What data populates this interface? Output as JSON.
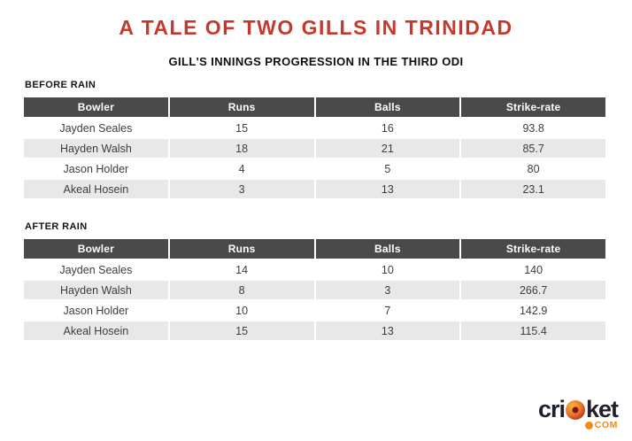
{
  "title": "A TALE OF TWO GILLS IN TRINIDAD",
  "subtitle": "GILL'S INNINGS PROGRESSION IN THE THIRD ODI",
  "colors": {
    "title_red": "#c5392c",
    "table_header_bg": "#4a4a4a",
    "table_header_text": "#ffffff",
    "row_alt_bg": "#e8e8e8",
    "cell_text": "#3d3d3d",
    "logo_text": "#231e2b",
    "logo_orange": "#f08921"
  },
  "chart_data": [
    {
      "type": "table",
      "title": "BEFORE RAIN",
      "columns": [
        "Bowler",
        "Runs",
        "Balls",
        "Strike-rate"
      ],
      "rows": [
        [
          "Jayden Seales",
          15,
          16,
          93.8
        ],
        [
          "Hayden Walsh",
          18,
          21,
          85.7
        ],
        [
          "Jason Holder",
          4,
          5,
          80
        ],
        [
          "Akeal Hosein",
          3,
          13,
          23.1
        ]
      ]
    },
    {
      "type": "table",
      "title": "AFTER RAIN",
      "columns": [
        "Bowler",
        "Runs",
        "Balls",
        "Strike-rate"
      ],
      "rows": [
        [
          "Jayden Seales",
          14,
          10,
          140
        ],
        [
          "Hayden Walsh",
          8,
          3,
          266.7
        ],
        [
          "Jason Holder",
          10,
          7,
          142.9
        ],
        [
          "Akeal Hosein",
          15,
          13,
          115.4
        ]
      ]
    }
  ],
  "logo": {
    "text_pre": "cri",
    "text_post": "ket",
    "suffix": "COM",
    "ball_icon": "cricket-ball-icon"
  }
}
